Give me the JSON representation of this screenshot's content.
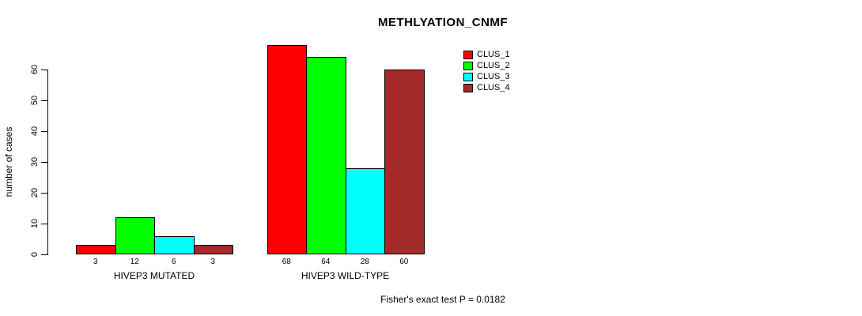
{
  "chart_data": {
    "type": "bar",
    "title": "METHLYATION_CNMF",
    "xlabel": "",
    "ylabel": "number of cases",
    "categories": [
      "HIVEP3 MUTATED",
      "HIVEP3 WILD-TYPE"
    ],
    "series": [
      {
        "name": "CLUS_1",
        "color": "#ff0000",
        "values": [
          3,
          68
        ]
      },
      {
        "name": "CLUS_2",
        "color": "#00ff00",
        "values": [
          12,
          64
        ]
      },
      {
        "name": "CLUS_3",
        "color": "#00ffff",
        "values": [
          6,
          28
        ]
      },
      {
        "name": "CLUS_4",
        "color": "#a52a2a",
        "values": [
          3,
          60
        ]
      }
    ],
    "ylim": [
      0,
      60
    ],
    "yticks": [
      0,
      10,
      20,
      30,
      40,
      50,
      60
    ],
    "grid": false,
    "bar_border_color": "#000000",
    "value_labels_under_bars": true,
    "legend_position": "top-right",
    "legend_entries": [
      "CLUS_1",
      "CLUS_2",
      "CLUS_3",
      "CLUS_4"
    ],
    "annotation": "Fisher's exact test P = 0.0182"
  }
}
